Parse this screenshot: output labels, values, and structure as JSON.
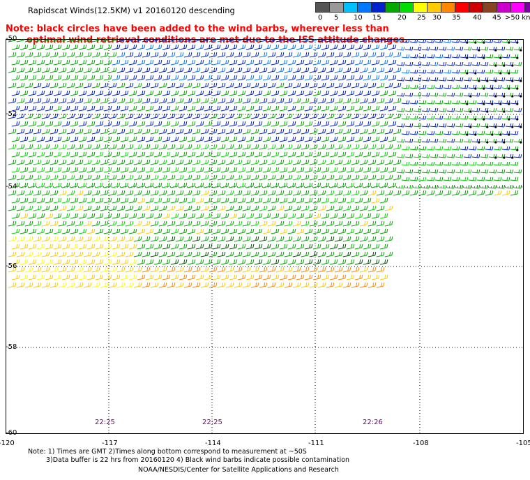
{
  "title": "Rapidscat Winds(12.5KM) v1 20160120 descending",
  "note": {
    "line1": "Note: black circles have been added to the wind barbs, wherever less than",
    "line2": "optimal wind retrieval conditions are met due to the ISS attitude changes."
  },
  "color_scale": {
    "labels": [
      "0",
      "5",
      "10",
      "15",
      "20",
      "25",
      "30",
      "35",
      "40",
      "45",
      ">50 knots"
    ],
    "colors": [
      "#555555",
      "#999999",
      "#00bfff",
      "#0077ff",
      "#0022cc",
      "#00aa00",
      "#00dd00",
      "#ffff00",
      "#ffcc00",
      "#ff8800",
      "#ff0000",
      "#cc0000",
      "#884422",
      "#cc00cc",
      "#ff00ff",
      "#7700aa",
      "#330066"
    ]
  },
  "map": {
    "lat_labels": [
      "-50",
      "-52",
      "-54",
      "-56",
      "-58",
      "-60"
    ],
    "lon_labels": [
      "-120",
      "-117",
      "-114",
      "-111",
      "-108",
      "-105"
    ],
    "time_labels": [
      "22:25",
      "22:25",
      "22:26"
    ]
  },
  "footer": {
    "line1": "Note: 1) Times are GMT 2)Times along bottom correspond to measurement at ~50S",
    "line2": "3)Data buffer is 22 hrs from 20160120 4) Black wind barbs indicate possible contamination",
    "credit": "NOAA/NESDIS/Center for Satellite Applications and Research"
  }
}
